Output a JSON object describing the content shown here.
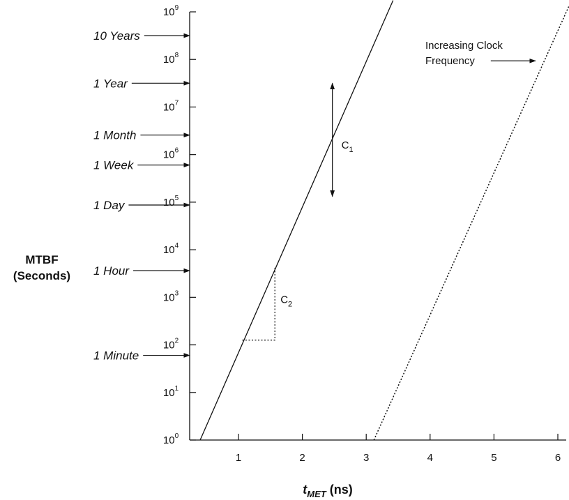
{
  "chart_data": {
    "type": "line",
    "xlabel": {
      "main": "t",
      "sub": "MET",
      "unit": "(ns)"
    },
    "ylabel": [
      "MTBF",
      "(Seconds)"
    ],
    "y_scale": "log10",
    "xlim": [
      0.3,
      6.15
    ],
    "ylim_exponent": [
      0,
      9
    ],
    "x_ticks": [
      1,
      2,
      3,
      4,
      5,
      6
    ],
    "y_ticks": [
      {
        "base": "10",
        "exp": "0"
      },
      {
        "base": "10",
        "exp": "1"
      },
      {
        "base": "10",
        "exp": "2"
      },
      {
        "base": "10",
        "exp": "3"
      },
      {
        "base": "10",
        "exp": "4"
      },
      {
        "base": "10",
        "exp": "5"
      },
      {
        "base": "10",
        "exp": "6"
      },
      {
        "base": "10",
        "exp": "7"
      },
      {
        "base": "10",
        "exp": "8"
      },
      {
        "base": "10",
        "exp": "9"
      }
    ],
    "series": [
      {
        "style": "solid",
        "points": [
          [
            0.4,
            0.0
          ],
          [
            3.42,
            9.24
          ]
        ]
      },
      {
        "style": "dotted",
        "points": [
          [
            3.12,
            0.0
          ],
          [
            6.2,
            9.2
          ]
        ]
      }
    ],
    "reference_lines": [
      {
        "label": "10 Years",
        "log_seconds": 8.5
      },
      {
        "label": "1 Year",
        "log_seconds": 7.5
      },
      {
        "label": "1 Month",
        "log_seconds": 6.41
      },
      {
        "label": "1 Week",
        "log_seconds": 5.78
      },
      {
        "label": "1 Day",
        "log_seconds": 4.94
      },
      {
        "label": "1 Hour",
        "log_seconds": 3.56
      },
      {
        "label": "1 Minute",
        "log_seconds": 1.78
      }
    ],
    "annotations": {
      "c1": {
        "label": "C",
        "sub": "1",
        "x": 2.47,
        "y_top_exp": 7.5,
        "y_bottom_exp": 5.12
      },
      "c2": {
        "label": "C",
        "sub": "2",
        "x1": 1.06,
        "x2": 1.57,
        "y_low_exp": 2.1,
        "y_high_exp": 3.65
      },
      "clock": {
        "lines": [
          "Increasing Clock",
          "Frequency"
        ],
        "arrow_x": [
          4.95,
          5.65
        ],
        "arrow_y_exp": 7.97
      }
    },
    "grid": false
  }
}
